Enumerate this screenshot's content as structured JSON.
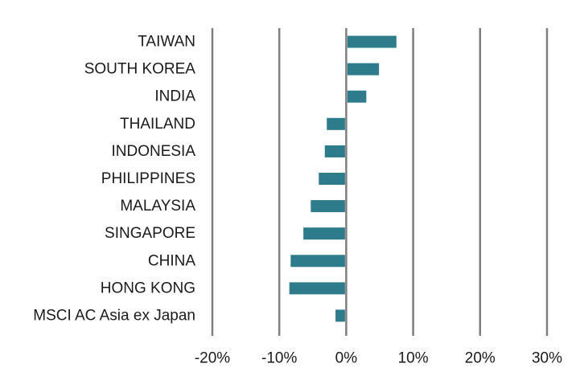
{
  "chart_data": {
    "type": "bar",
    "orientation": "horizontal",
    "title": "",
    "xlabel": "",
    "ylabel": "",
    "categories": [
      "TAIWAN",
      "SOUTH KOREA",
      "INDIA",
      "THAILAND",
      "INDONESIA",
      "PHILIPPINES",
      "MALAYSIA",
      "SINGAPORE",
      "CHINA",
      "HONG KONG",
      "MSCI AC Asia ex Japan"
    ],
    "values": [
      7.5,
      4.9,
      3.0,
      -2.9,
      -3.2,
      -4.1,
      -5.3,
      -6.4,
      -8.3,
      -8.5,
      -1.6
    ],
    "xlim": [
      -20,
      30
    ],
    "xticks": [
      -20,
      -10,
      0,
      10,
      20,
      30
    ],
    "xtick_labels": [
      "-20%",
      "-10%",
      "0%",
      "10%",
      "20%",
      "30%"
    ],
    "grid": true,
    "legend": "none",
    "colors": {
      "bar": "#2e7b8c",
      "grid": "#7f7f7f",
      "text": "#1a1a1a"
    }
  }
}
